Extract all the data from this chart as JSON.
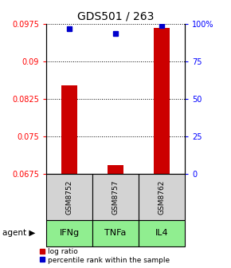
{
  "title": "GDS501 / 263",
  "samples": [
    "GSM8752",
    "GSM8757",
    "GSM8762"
  ],
  "agents": [
    "IFNg",
    "TNFa",
    "IL4"
  ],
  "log_ratio": [
    0.0852,
    0.0693,
    0.0968
  ],
  "percentile_rank": [
    97,
    94,
    99
  ],
  "ylim_left": [
    0.0675,
    0.0975
  ],
  "ylim_right": [
    0,
    100
  ],
  "yticks_left": [
    0.0675,
    0.075,
    0.0825,
    0.09,
    0.0975
  ],
  "ytick_labels_left": [
    "0.0675",
    "0.075",
    "0.0825",
    "0.09",
    "0.0975"
  ],
  "yticks_right": [
    0,
    25,
    50,
    75,
    100
  ],
  "ytick_labels_right": [
    "0",
    "25",
    "50",
    "75",
    "100%"
  ],
  "bar_color": "#CC0000",
  "point_color": "#0000CC",
  "agent_bg_color": "#90EE90",
  "sample_bg_color": "#D3D3D3",
  "bar_width": 0.35,
  "legend_bar_label": "log ratio",
  "legend_point_label": "percentile rank within the sample"
}
